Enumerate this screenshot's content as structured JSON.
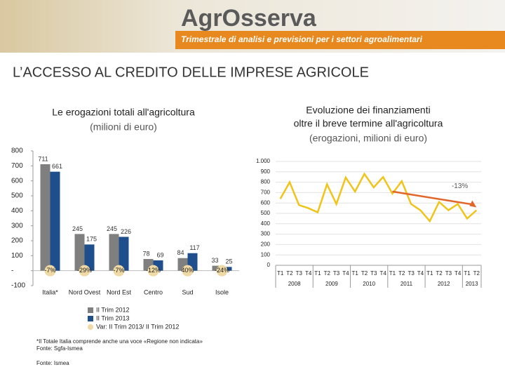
{
  "header": {
    "brand": "AgrOsserva",
    "tagline": "Trimestrale di analisi e previsioni per i settori agroalimentari"
  },
  "slide_title": "L’ACCESSO AL CREDITO DELLE IMPRESE AGRICOLE",
  "chart_data": [
    {
      "type": "bar",
      "title": "Le erogazioni totali all'agricoltura",
      "subtitle": "(milioni di euro)",
      "categories": [
        "Italia*",
        "Nord Ovest",
        "Nord Est",
        "Centro",
        "Sud",
        "Isole"
      ],
      "series": [
        {
          "name": "II Trim 2012",
          "color": "#7f7f7f",
          "values": [
            711,
            245,
            245,
            78,
            84,
            33
          ]
        },
        {
          "name": "II Trim 2013",
          "color": "#1f4e8c",
          "values": [
            661,
            175,
            226,
            69,
            117,
            25
          ]
        }
      ],
      "change": {
        "name": "Var: II Trim 2013/ II Trim 2012",
        "color": "#efd9a4",
        "values": [
          -7,
          -29,
          -7,
          -12,
          40,
          -24
        ],
        "value_labels": [
          "-7%",
          "-29%",
          "-7%",
          "-12%",
          "40%",
          "-24%"
        ]
      },
      "ylim": [
        -100,
        800
      ],
      "yticks": [
        -100,
        {
          "value": 0,
          "label": "-"
        },
        100,
        200,
        300,
        400,
        500,
        600,
        700,
        800
      ],
      "legend": "bottom"
    },
    {
      "type": "line",
      "title": [
        "Evoluzione dei finanziamenti",
        "oltre il breve termine all'agricoltura"
      ],
      "subtitle": "(erogazioni, milioni di euro)",
      "categories": [
        "T1",
        "T2",
        "T3",
        "T4",
        "T1",
        "T2",
        "T3",
        "T4",
        "T1",
        "T2",
        "T3",
        "T4",
        "T1",
        "T2",
        "T3",
        "T4",
        "T1",
        "T2",
        "T3",
        "T4",
        "T1",
        "T2"
      ],
      "groups": [
        "2008",
        "2009",
        "2010",
        "2011",
        "2012",
        "2013"
      ],
      "values": [
        640,
        800,
        580,
        550,
        510,
        780,
        590,
        845,
        710,
        880,
        750,
        850,
        690,
        810,
        590,
        530,
        425,
        610,
        530,
        590,
        450,
        530
      ],
      "color": "#f0c419",
      "ylim": [
        0,
        1000
      ],
      "yticks": [
        0,
        100,
        200,
        300,
        400,
        500,
        600,
        700,
        800,
        900,
        {
          "value": 1000,
          "label": "1.000"
        }
      ],
      "grid": true,
      "annotation": "-13%"
    }
  ],
  "notes": [
    "*Il Totale Italia comprende anche una voce «Regione non indicata»",
    "Fonte: Sgfa-Ismea",
    "Fonte: Ismea"
  ]
}
